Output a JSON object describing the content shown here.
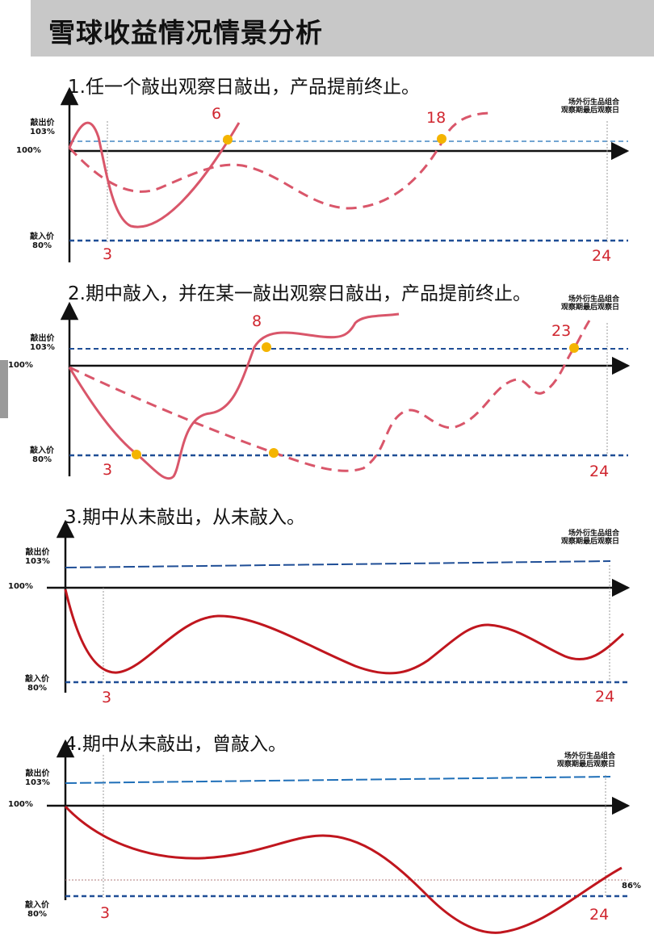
{
  "title": "雪球收益情况情景分析",
  "labels": {
    "knock_out_1": "敲出价",
    "knock_out_2": "103%",
    "initial": "100%",
    "knock_in_1": "敲入价",
    "knock_in_2": "80%",
    "final_note_1": "场外衍生品组合",
    "final_note_2": "观察期最后观察日",
    "month_3": "3",
    "month_24": "24"
  },
  "scenarios": [
    {
      "title": "1.任一个敲出观察日敲出，产品提前终止。",
      "markers": [
        "6",
        "18"
      ]
    },
    {
      "title": "2.期中敲入，并在某一敲出观察日敲出，产品提前终止。",
      "markers": [
        "8",
        "23"
      ]
    },
    {
      "title": "3.期中从未敲出，从未敲入。",
      "markers": []
    },
    {
      "title": "4.期中从未敲出，曾敲入。",
      "markers": [],
      "extra_level": "86%"
    }
  ],
  "colors": {
    "path_light": "#d9566a",
    "path_dark": "#c0161e",
    "barrier": "#1f4e96",
    "marker": "#f4b400",
    "number": "#d0262f"
  }
}
